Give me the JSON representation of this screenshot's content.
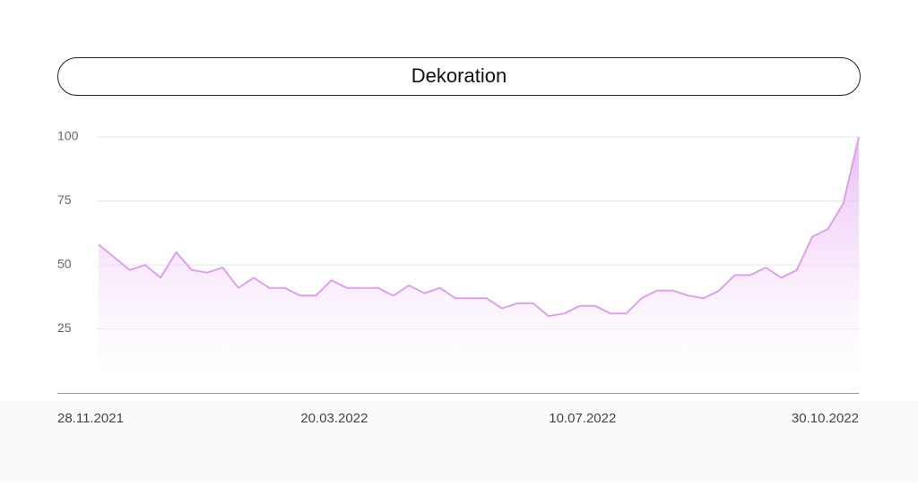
{
  "chart_data": {
    "type": "area",
    "title": "Dekoration",
    "categories": [
      "28.11.2021",
      null,
      null,
      null,
      null,
      null,
      null,
      null,
      null,
      null,
      null,
      null,
      null,
      null,
      null,
      null,
      "20.03.2022",
      null,
      null,
      null,
      null,
      null,
      null,
      null,
      null,
      null,
      null,
      null,
      null,
      null,
      null,
      null,
      "10.07.2022",
      null,
      null,
      null,
      null,
      null,
      null,
      null,
      null,
      null,
      null,
      null,
      null,
      null,
      null,
      null,
      null,
      "30.10.2022"
    ],
    "series": [
      {
        "name": "Dekoration",
        "color": "#df9ff0",
        "values": [
          58,
          53,
          48,
          50,
          45,
          55,
          48,
          47,
          49,
          41,
          45,
          41,
          41,
          38,
          38,
          44,
          41,
          41,
          41,
          38,
          42,
          39,
          41,
          37,
          37,
          37,
          33,
          35,
          35,
          30,
          31,
          34,
          34,
          31,
          31,
          37,
          40,
          40,
          38,
          37,
          40,
          46,
          46,
          49,
          45,
          48,
          61,
          64,
          74,
          100
        ]
      }
    ],
    "ylim": [
      0,
      100
    ],
    "yticks": [
      25,
      50,
      75,
      100
    ],
    "grid": true
  }
}
